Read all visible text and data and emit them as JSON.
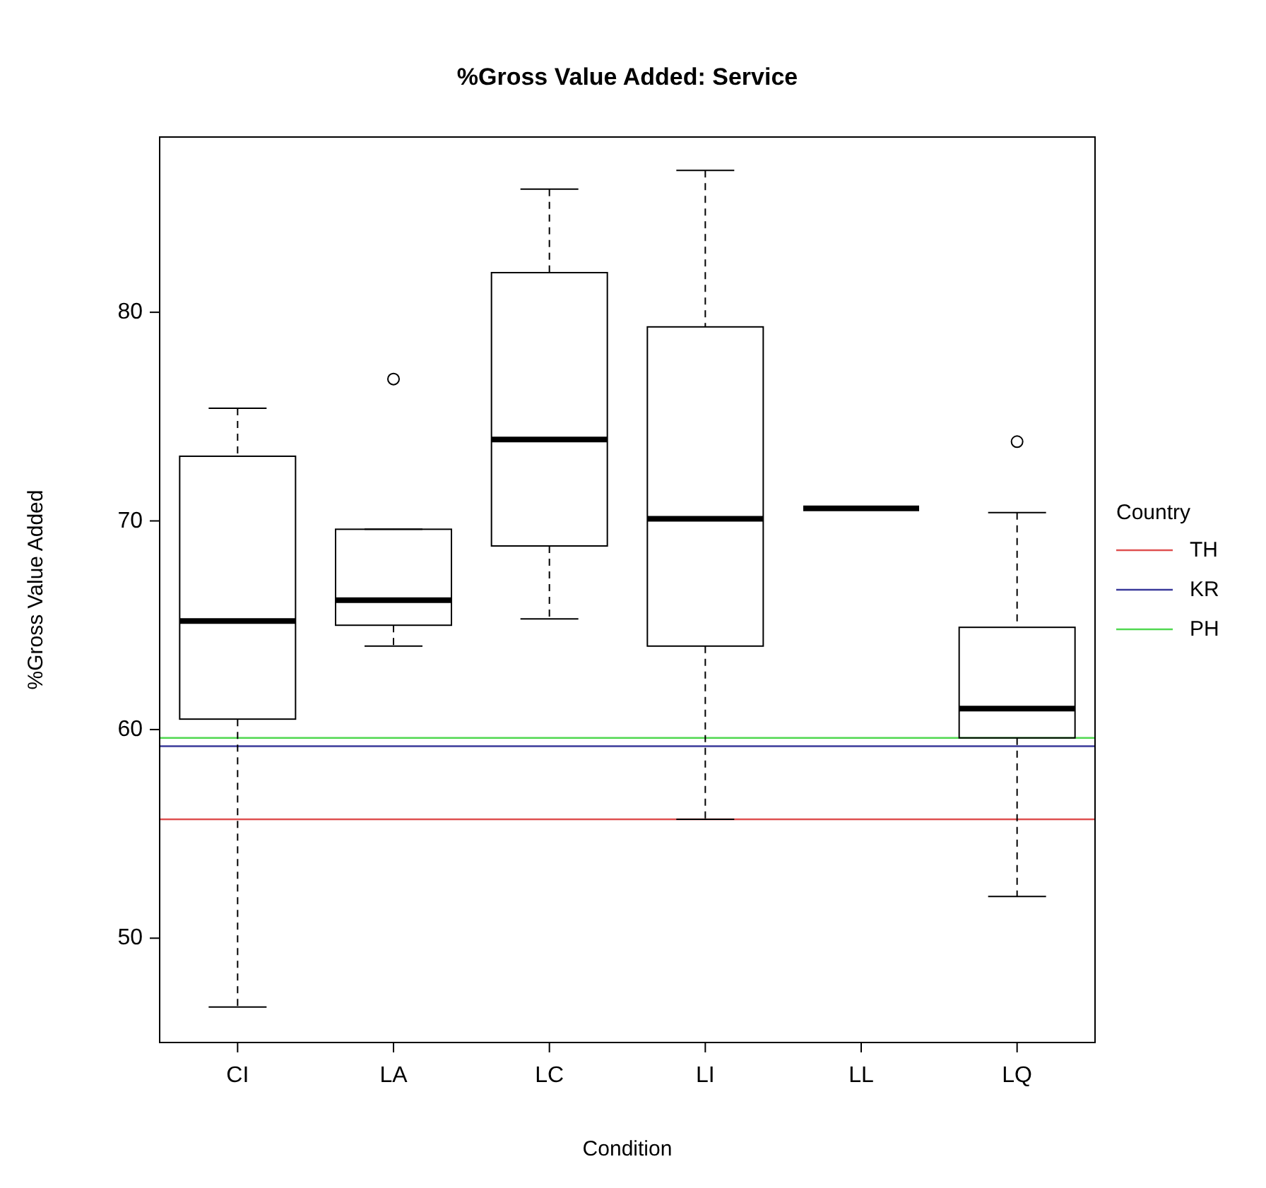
{
  "chart_data": {
    "type": "box",
    "title": "%Gross Value Added: Service",
    "xlabel": "Condition",
    "ylabel": "%Gross Value Added",
    "legend_title": "Country",
    "legend": "right",
    "categories": [
      "CI",
      "LA",
      "LC",
      "LI",
      "LL",
      "LQ"
    ],
    "boxes": [
      {
        "low": 46.7,
        "q1": 60.5,
        "median": 65.2,
        "q3": 73.1,
        "high": 75.4
      },
      {
        "low": 64.0,
        "q1": 65.0,
        "median": 66.2,
        "q3": 69.6,
        "high": 69.6,
        "outliers": [
          76.8
        ]
      },
      {
        "low": 65.3,
        "q1": 68.8,
        "median": 73.9,
        "q3": 81.9,
        "high": 85.9
      },
      {
        "low": 55.7,
        "q1": 64.0,
        "median": 70.1,
        "q3": 79.3,
        "high": 86.8
      },
      {
        "low": 70.6,
        "q1": 70.6,
        "median": 70.6,
        "q3": 70.6,
        "high": 70.6
      },
      {
        "low": 52.0,
        "q1": 59.6,
        "median": 61.0,
        "q3": 64.9,
        "high": 70.4,
        "outliers": [
          73.8
        ]
      }
    ],
    "ref_lines": [
      {
        "axis": "y",
        "value": 55.7,
        "label": "TH",
        "color": "#df5050"
      },
      {
        "axis": "y",
        "value": 59.2,
        "label": "KR",
        "color": "#3a3a9a"
      },
      {
        "axis": "y",
        "value": 59.6,
        "label": "PH",
        "color": "#50d850"
      }
    ],
    "ylim": [
      45,
      88.4
    ],
    "yticks": [
      50,
      60,
      70,
      80
    ]
  }
}
